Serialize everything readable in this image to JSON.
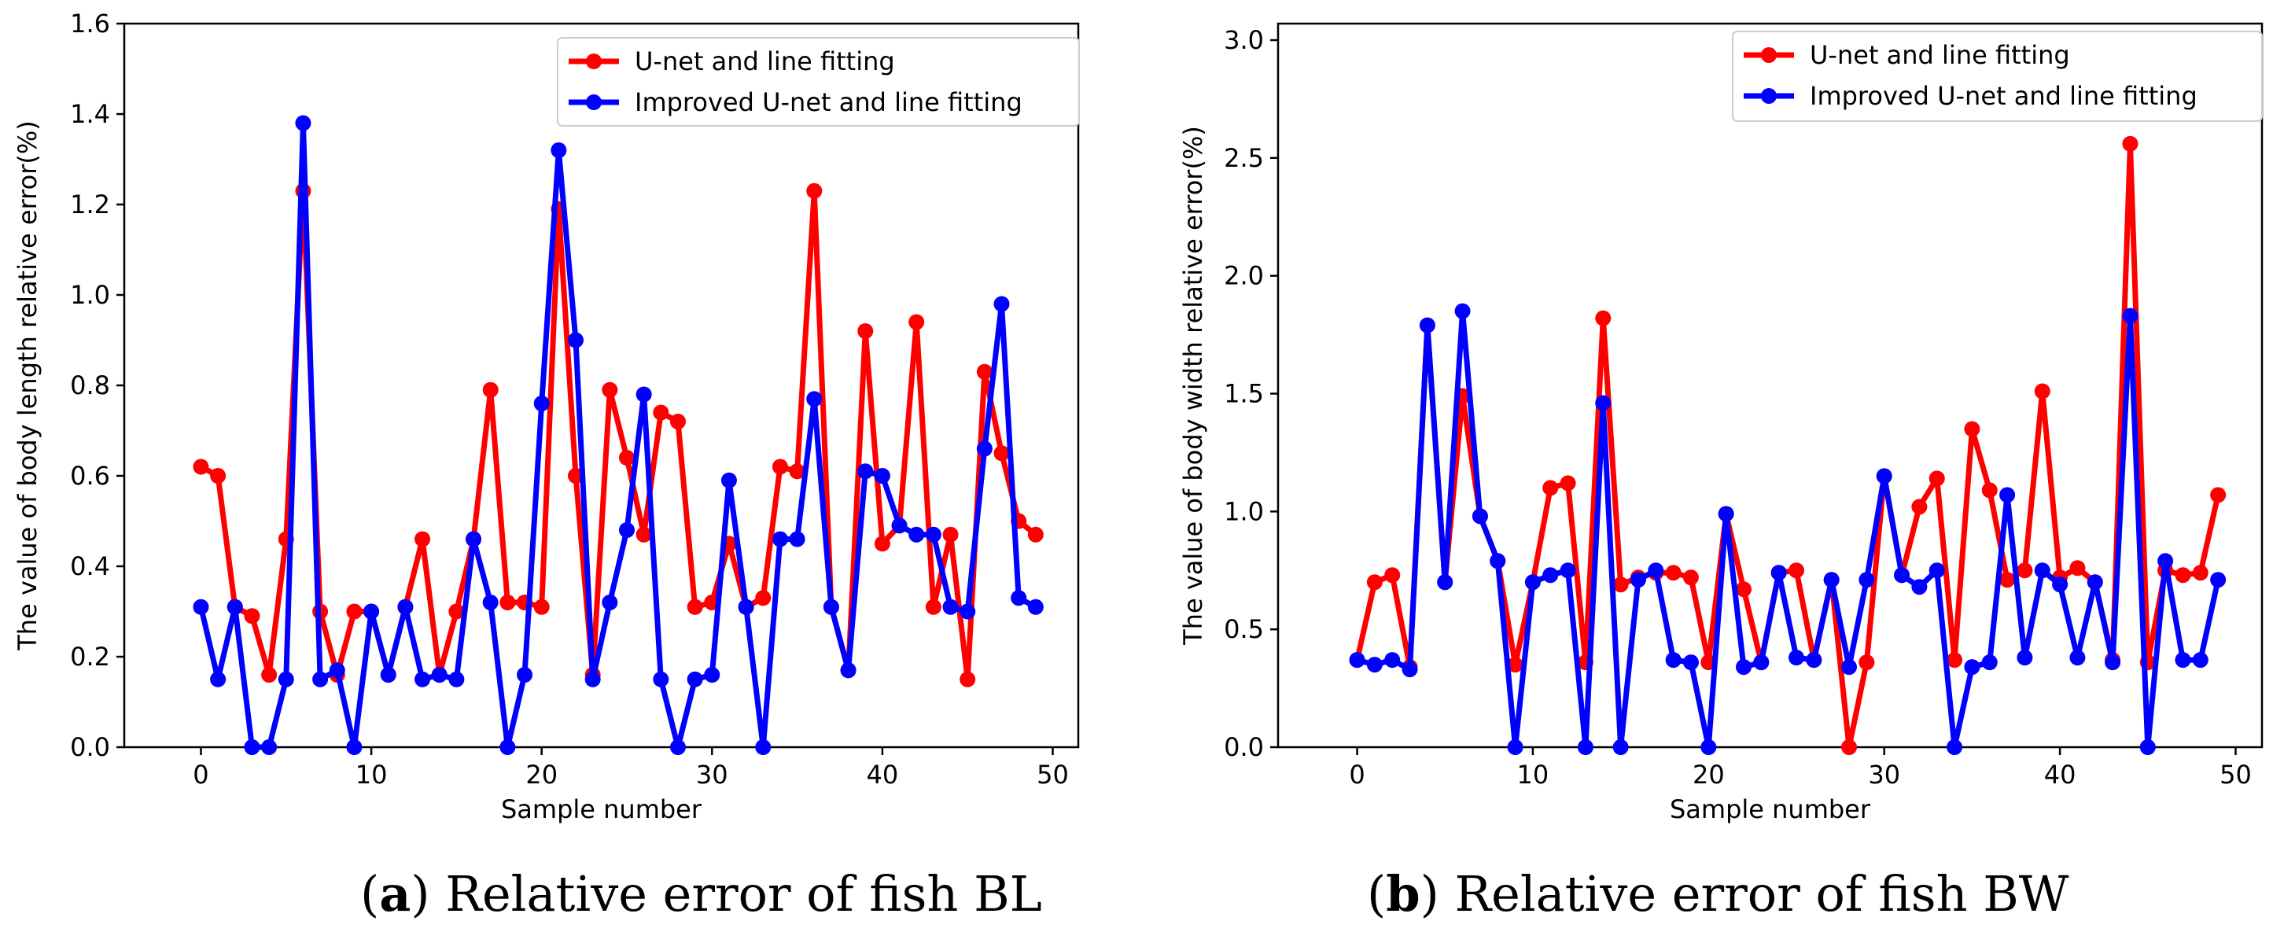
{
  "captions": [
    {
      "label": "a",
      "text": " Relative error of fish BL"
    },
    {
      "label": "b",
      "text": " Relative error of fish BW"
    }
  ],
  "colors": {
    "series_1": "#ff0000",
    "series_2": "#0000ff"
  },
  "chart_data": [
    {
      "type": "line",
      "title": "",
      "xlabel": "Sample number",
      "ylabel": "The value of body length relative error(%)",
      "xlim": [
        -4.5,
        51.5
      ],
      "ylim": [
        0,
        1.6
      ],
      "xticks": [
        0,
        10,
        20,
        30,
        40,
        50
      ],
      "yticks": [
        0.0,
        0.2,
        0.4,
        0.6,
        0.8,
        1.0,
        1.2,
        1.4,
        1.6
      ],
      "ytick_labels": [
        "0.0",
        "0.2",
        "0.4",
        "0.6",
        "0.8",
        "1.0",
        "1.2",
        "1.4",
        "1.6"
      ],
      "legend_position": "top-right",
      "x": [
        0,
        1,
        2,
        3,
        4,
        5,
        6,
        7,
        8,
        9,
        10,
        11,
        12,
        13,
        14,
        15,
        16,
        17,
        18,
        19,
        20,
        21,
        22,
        23,
        24,
        25,
        26,
        27,
        28,
        29,
        30,
        31,
        32,
        33,
        34,
        35,
        36,
        37,
        38,
        39,
        40,
        41,
        42,
        43,
        44,
        45,
        46,
        47,
        48,
        49
      ],
      "series": [
        {
          "name": "U-net and line fitting",
          "values": [
            0.62,
            0.6,
            0.31,
            0.29,
            0.16,
            0.46,
            1.23,
            0.3,
            0.16,
            0.3,
            0.3,
            0.16,
            0.31,
            0.46,
            0.16,
            0.3,
            0.46,
            0.79,
            0.32,
            0.32,
            0.31,
            1.19,
            0.6,
            0.16,
            0.79,
            0.64,
            0.47,
            0.74,
            0.72,
            0.31,
            0.32,
            0.45,
            0.31,
            0.33,
            0.62,
            0.61,
            1.23,
            0.31,
            0.17,
            0.92,
            0.45,
            0.49,
            0.94,
            0.31,
            0.47,
            0.15,
            0.83,
            0.65,
            0.5,
            0.47
          ]
        },
        {
          "name": "Improved U-net and line fitting",
          "values": [
            0.31,
            0.15,
            0.31,
            0.0,
            0.0,
            0.15,
            1.38,
            0.15,
            0.17,
            0.0,
            0.3,
            0.16,
            0.31,
            0.15,
            0.16,
            0.15,
            0.46,
            0.32,
            0.0,
            0.16,
            0.76,
            1.32,
            0.9,
            0.15,
            0.32,
            0.48,
            0.78,
            0.15,
            0.0,
            0.15,
            0.16,
            0.59,
            0.31,
            0.0,
            0.46,
            0.46,
            0.77,
            0.31,
            0.17,
            0.61,
            0.6,
            0.49,
            0.47,
            0.47,
            0.31,
            0.3,
            0.66,
            0.98,
            0.33,
            0.31
          ]
        }
      ]
    },
    {
      "type": "line",
      "title": "",
      "xlabel": "Sample number",
      "ylabel": "The value of body width relative error(%)",
      "xlim": [
        -4.5,
        51.5
      ],
      "ylim": [
        0,
        3.07
      ],
      "xticks": [
        0,
        10,
        20,
        30,
        40,
        50
      ],
      "yticks": [
        0.0,
        0.5,
        1.0,
        1.5,
        2.0,
        2.5,
        3.0
      ],
      "ytick_labels": [
        "0.0",
        "0.5",
        "1.0",
        "1.5",
        "2.0",
        "2.5",
        "3.0"
      ],
      "legend_position": "top-right",
      "x": [
        0,
        1,
        2,
        3,
        4,
        5,
        6,
        7,
        8,
        9,
        10,
        11,
        12,
        13,
        14,
        15,
        16,
        17,
        18,
        19,
        20,
        21,
        22,
        23,
        24,
        25,
        26,
        27,
        28,
        29,
        30,
        31,
        32,
        33,
        34,
        35,
        36,
        37,
        38,
        39,
        40,
        41,
        42,
        43,
        44,
        45,
        46,
        47,
        48,
        49
      ],
      "series": [
        {
          "name": "U-net and line fitting",
          "values": [
            0.37,
            0.7,
            0.73,
            0.34,
            1.79,
            0.7,
            1.49,
            0.98,
            0.79,
            0.35,
            0.7,
            1.1,
            1.12,
            0.36,
            1.82,
            0.69,
            0.72,
            0.74,
            0.74,
            0.72,
            0.36,
            0.99,
            0.67,
            0.36,
            0.74,
            0.75,
            0.37,
            0.71,
            0.0,
            0.36,
            1.15,
            0.73,
            1.02,
            1.14,
            0.37,
            1.35,
            1.09,
            0.71,
            0.75,
            1.51,
            0.72,
            0.76,
            0.7,
            0.37,
            2.56,
            0.36,
            0.75,
            0.73,
            0.74,
            1.07
          ]
        },
        {
          "name": "Improved U-net and line fitting",
          "values": [
            0.37,
            0.35,
            0.37,
            0.33,
            1.79,
            0.7,
            1.85,
            0.98,
            0.79,
            0.0,
            0.7,
            0.73,
            0.75,
            0.0,
            1.46,
            0.0,
            0.71,
            0.75,
            0.37,
            0.36,
            0.0,
            0.99,
            0.34,
            0.36,
            0.74,
            0.38,
            0.37,
            0.71,
            0.34,
            0.71,
            1.15,
            0.73,
            0.68,
            0.75,
            0.0,
            0.34,
            0.36,
            1.07,
            0.38,
            0.75,
            0.69,
            0.38,
            0.7,
            0.36,
            1.83,
            0.0,
            0.79,
            0.37,
            0.37,
            0.71
          ]
        }
      ]
    }
  ]
}
